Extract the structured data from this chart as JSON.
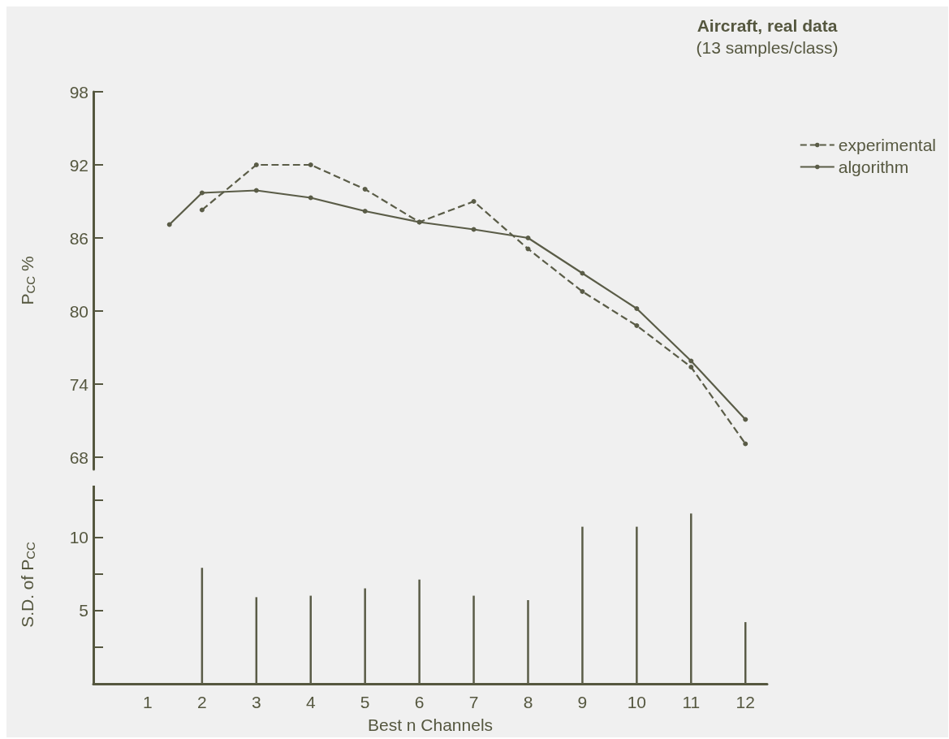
{
  "chart_data": [
    {
      "type": "line",
      "title": "Aircraft, real data",
      "subtitle": "(13 samples/class)",
      "ylabel": "P$_{CC}$ %",
      "xlim": [
        0,
        12
      ],
      "xticks": [
        1,
        2,
        3,
        4,
        5,
        6,
        7,
        8,
        9,
        10,
        11,
        12
      ],
      "tick_labels": "y",
      "ylim": [
        67,
        98
      ],
      "yticks": [
        68,
        74,
        80,
        86,
        92,
        98
      ],
      "grid": false,
      "legend": "top right",
      "marker": "circle",
      "series": [
        {
          "name": "experimental",
          "color": "#5a5c47",
          "line_style": "dashed",
          "x": [
            2,
            3,
            4,
            5,
            6,
            7,
            8,
            9,
            10,
            11,
            12
          ],
          "values": [
            88.3,
            92.0,
            92.0,
            90.0,
            87.3,
            89.0,
            85.1,
            81.6,
            78.8,
            75.4,
            69.1
          ]
        },
        {
          "name": "algorithm",
          "color": "#5a5c47",
          "line_style": "solid",
          "x": [
            1.4,
            2,
            3,
            4,
            5,
            6,
            7,
            8,
            9,
            10,
            11,
            12
          ],
          "values": [
            87.1,
            89.7,
            89.9,
            89.3,
            88.2,
            87.3,
            86.7,
            86.0,
            83.1,
            80.2,
            75.9,
            71.1
          ]
        }
      ]
    },
    {
      "type": "bar",
      "xlabel": "Best n Channels",
      "ylabel": "S.D. of P$_{CC}$",
      "xlim": [
        0,
        12.4
      ],
      "xticks": [
        1,
        2,
        3,
        4,
        5,
        6,
        7,
        8,
        9,
        10,
        11,
        12
      ],
      "ylim": [
        0,
        13.5
      ],
      "yticks": [
        {
          "value": 2.5,
          "label": null
        },
        5,
        {
          "value": 7.5,
          "label": null
        },
        10,
        {
          "value": 12.5,
          "label": null
        }
      ],
      "grid": false,
      "x": [
        2,
        3,
        4,
        5,
        6,
        7,
        8,
        9,
        10,
        11,
        12
      ],
      "values": [
        7.9,
        5.9,
        6.0,
        6.5,
        7.1,
        6.0,
        5.7,
        10.7,
        10.7,
        11.6,
        4.2
      ],
      "color": "#5a5c47"
    }
  ]
}
